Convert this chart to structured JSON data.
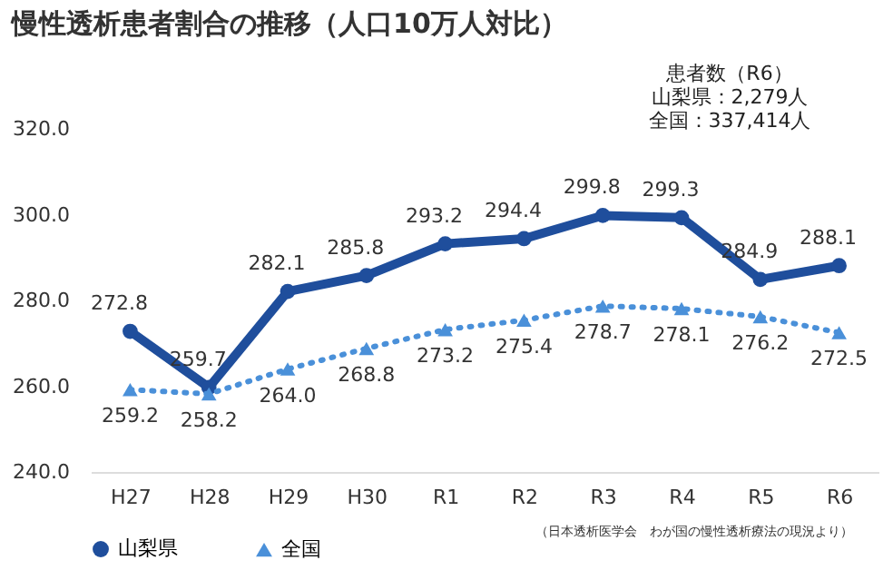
{
  "chart_data": {
    "type": "line",
    "title": "慢性透析患者割合の推移（人口10万人対比）",
    "categories": [
      "H27",
      "H28",
      "H29",
      "H30",
      "R1",
      "R2",
      "R3",
      "R4",
      "R5",
      "R6"
    ],
    "series": [
      {
        "name": "山梨県",
        "color": "#1f4e9c",
        "marker": "circle",
        "line_style": "solid",
        "values": [
          272.8,
          259.7,
          282.1,
          285.8,
          293.2,
          294.4,
          299.8,
          299.3,
          284.9,
          288.1
        ],
        "value_labels": [
          "272.8",
          "259.7",
          "282.1",
          "285.8",
          "293.2",
          "294.4",
          "299.8",
          "299.3",
          "284.9",
          "288.1"
        ]
      },
      {
        "name": "全国",
        "color": "#4a90d9",
        "marker": "triangle",
        "line_style": "dotted",
        "values": [
          259.2,
          258.2,
          264.0,
          268.8,
          273.2,
          275.4,
          278.7,
          278.1,
          276.2,
          272.5
        ],
        "value_labels": [
          "259.2",
          "258.2",
          "264.0",
          "268.8",
          "273.2",
          "275.4",
          "278.7",
          "278.1",
          "276.2",
          "272.5"
        ]
      }
    ],
    "ylim": [
      240,
      320
    ],
    "yticks": [
      {
        "value": 240,
        "label": "240.0"
      },
      {
        "value": 260,
        "label": "260.0"
      },
      {
        "value": 280,
        "label": "280.0"
      },
      {
        "value": 300,
        "label": "300.0"
      },
      {
        "value": 320,
        "label": "320.0"
      }
    ],
    "grid": false,
    "legend": "bottom",
    "annotations": [
      "患者数（R6）",
      "山梨県：2,279人",
      "全国：337,414人",
      "（日本透析医学会　わが国の慢性透析療法の現況より）"
    ]
  }
}
